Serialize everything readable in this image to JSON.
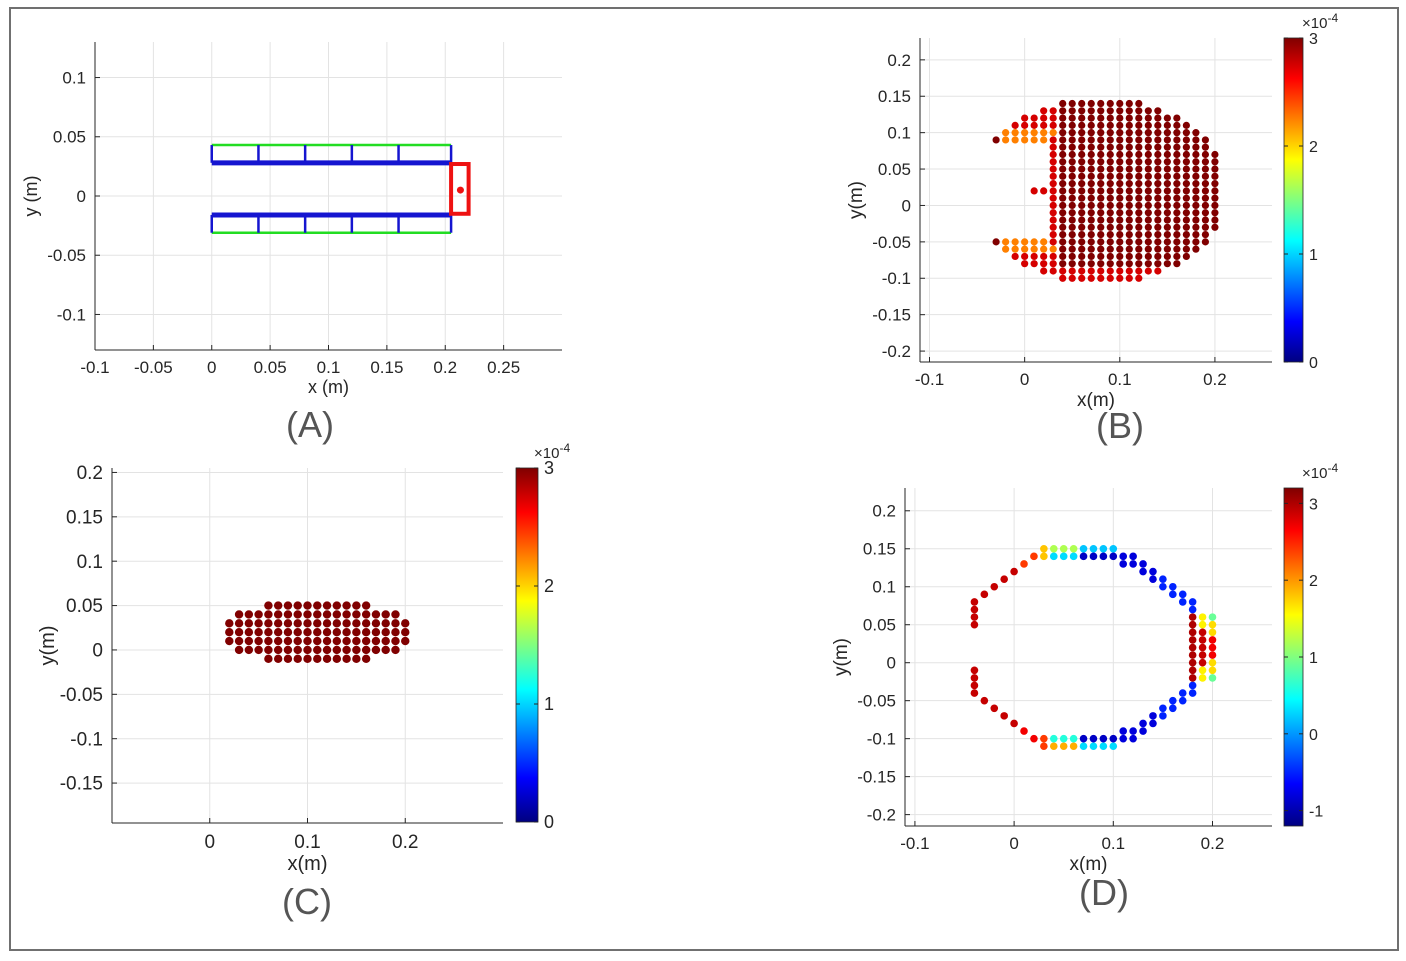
{
  "figure": {
    "colormap": [
      "#000080",
      "#0000ff",
      "#0080ff",
      "#00ffff",
      "#80ff80",
      "#ffff00",
      "#ff8000",
      "#ff0000",
      "#800000"
    ]
  },
  "chart_data": [
    {
      "id": "A",
      "caption": "(A)",
      "type": "scatter",
      "title": "",
      "xlabel": "x (m)",
      "ylabel": "y (m)",
      "xlim": [
        -0.1,
        0.3
      ],
      "ylim": [
        -0.13,
        0.13
      ],
      "xticks": [
        -0.1,
        -0.05,
        0,
        0.05,
        0.1,
        0.15,
        0.2,
        0.25
      ],
      "xtick_labels": [
        "-0.1",
        "-0.05",
        "0",
        "0.05",
        "0.1",
        "0.15",
        "0.2",
        "0.25"
      ],
      "yticks": [
        -0.1,
        -0.05,
        0,
        0.05,
        0.1
      ],
      "ytick_labels": [
        "-0.1",
        "-0.05",
        "0",
        "0.05",
        "0.1"
      ],
      "grid": true,
      "geometry": {
        "blue_rails": [
          {
            "x": [
              0,
              0.205
            ],
            "y": [
              0.028,
              0.028
            ]
          },
          {
            "x": [
              0,
              0.205
            ],
            "y": [
              -0.016,
              -0.016
            ]
          }
        ],
        "green_rails": [
          {
            "x": [
              0,
              0.205
            ],
            "y": [
              0.043,
              0.043
            ]
          },
          {
            "x": [
              0,
              0.205
            ],
            "y": [
              -0.031,
              -0.031
            ]
          }
        ],
        "rung_x": [
          0,
          0.04,
          0.08,
          0.12,
          0.16,
          0.205
        ],
        "red_box": {
          "x": [
            0.205,
            0.22
          ],
          "y": [
            -0.015,
            0.027
          ]
        },
        "red_marker": {
          "x": 0.213,
          "y": 0.005
        }
      }
    },
    {
      "id": "B",
      "caption": "(B)",
      "type": "scatter",
      "xlabel": "x(m)",
      "ylabel": "y(m)",
      "xlim": [
        -0.11,
        0.26
      ],
      "ylim": [
        -0.215,
        0.23
      ],
      "xticks": [
        -0.1,
        0,
        0.1,
        0.2
      ],
      "xtick_labels": [
        "-0.1",
        "0",
        "0.1",
        "0.2"
      ],
      "yticks": [
        -0.2,
        -0.15,
        -0.1,
        -0.05,
        0,
        0.05,
        0.1,
        0.15,
        0.2
      ],
      "ytick_labels": [
        "-0.2",
        "-0.15",
        "-0.1",
        "-0.05",
        "0",
        "0.05",
        "0.1",
        "0.15",
        "0.2"
      ],
      "grid": true,
      "colorbar": {
        "min": 0,
        "max": 3,
        "ticks": [
          0,
          1,
          2,
          3
        ],
        "tick_labels": [
          "0",
          "1",
          "2",
          "3"
        ],
        "exponent_base": "×10",
        "exponent": "-4"
      },
      "points_description": "disc centered near (0.08, 0.02), radius ~0.13, left notch; inner dark red ~3e-4, outer red ~2.7e-4, notch edge orange ~2.3e-4"
    },
    {
      "id": "C",
      "caption": "(C)",
      "type": "scatter",
      "xlabel": "x(m)",
      "ylabel": "y(m)",
      "xlim": [
        -0.1,
        0.3
      ],
      "ylim": [
        -0.195,
        0.205
      ],
      "xticks": [
        0,
        0.1,
        0.2
      ],
      "xtick_labels": [
        "0",
        "0.1",
        "0.2"
      ],
      "yticks": [
        -0.15,
        -0.1,
        -0.05,
        0,
        0.05,
        0.1,
        0.15,
        0.2
      ],
      "ytick_labels": [
        "-0.15",
        "-0.1",
        "-0.05",
        "0",
        "0.05",
        "0.1",
        "0.15",
        "0.2"
      ],
      "grid": true,
      "colorbar": {
        "min": 0,
        "max": 3,
        "ticks": [
          0,
          1,
          2,
          3
        ],
        "tick_labels": [
          "0",
          "1",
          "2",
          "3"
        ],
        "exponent_base": "×10",
        "exponent": "-4"
      },
      "points_description": "elliptical cluster centered (0.11, 0.02), all at ~3e-4 (dark red)"
    },
    {
      "id": "D",
      "caption": "(D)",
      "type": "scatter",
      "xlabel": "x(m)",
      "ylabel": "y(m)",
      "xlim": [
        -0.11,
        0.26
      ],
      "ylim": [
        -0.215,
        0.23
      ],
      "xticks": [
        -0.1,
        0,
        0.1,
        0.2
      ],
      "xtick_labels": [
        "-0.1",
        "0",
        "0.1",
        "0.2"
      ],
      "yticks": [
        -0.2,
        -0.15,
        -0.1,
        -0.05,
        0,
        0.05,
        0.1,
        0.15,
        0.2
      ],
      "ytick_labels": [
        "-0.2",
        "-0.15",
        "-0.1",
        "-0.05",
        "0",
        "0.05",
        "0.1",
        "0.15",
        "0.2"
      ],
      "grid": true,
      "colorbar": {
        "min": -1.2,
        "max": 3.2,
        "ticks": [
          -1,
          0,
          1,
          2,
          3
        ],
        "tick_labels": [
          "-1",
          "0",
          "1",
          "2",
          "3"
        ],
        "exponent_base": "×10",
        "exponent": "-4"
      },
      "points_description": "ring boundary of the disc in (B); left side red ~2.8e-4, top/bottom arcs blue ~-0.5e-4, right edge cyan-yellow-red ~0.5 to 3e-4"
    }
  ]
}
